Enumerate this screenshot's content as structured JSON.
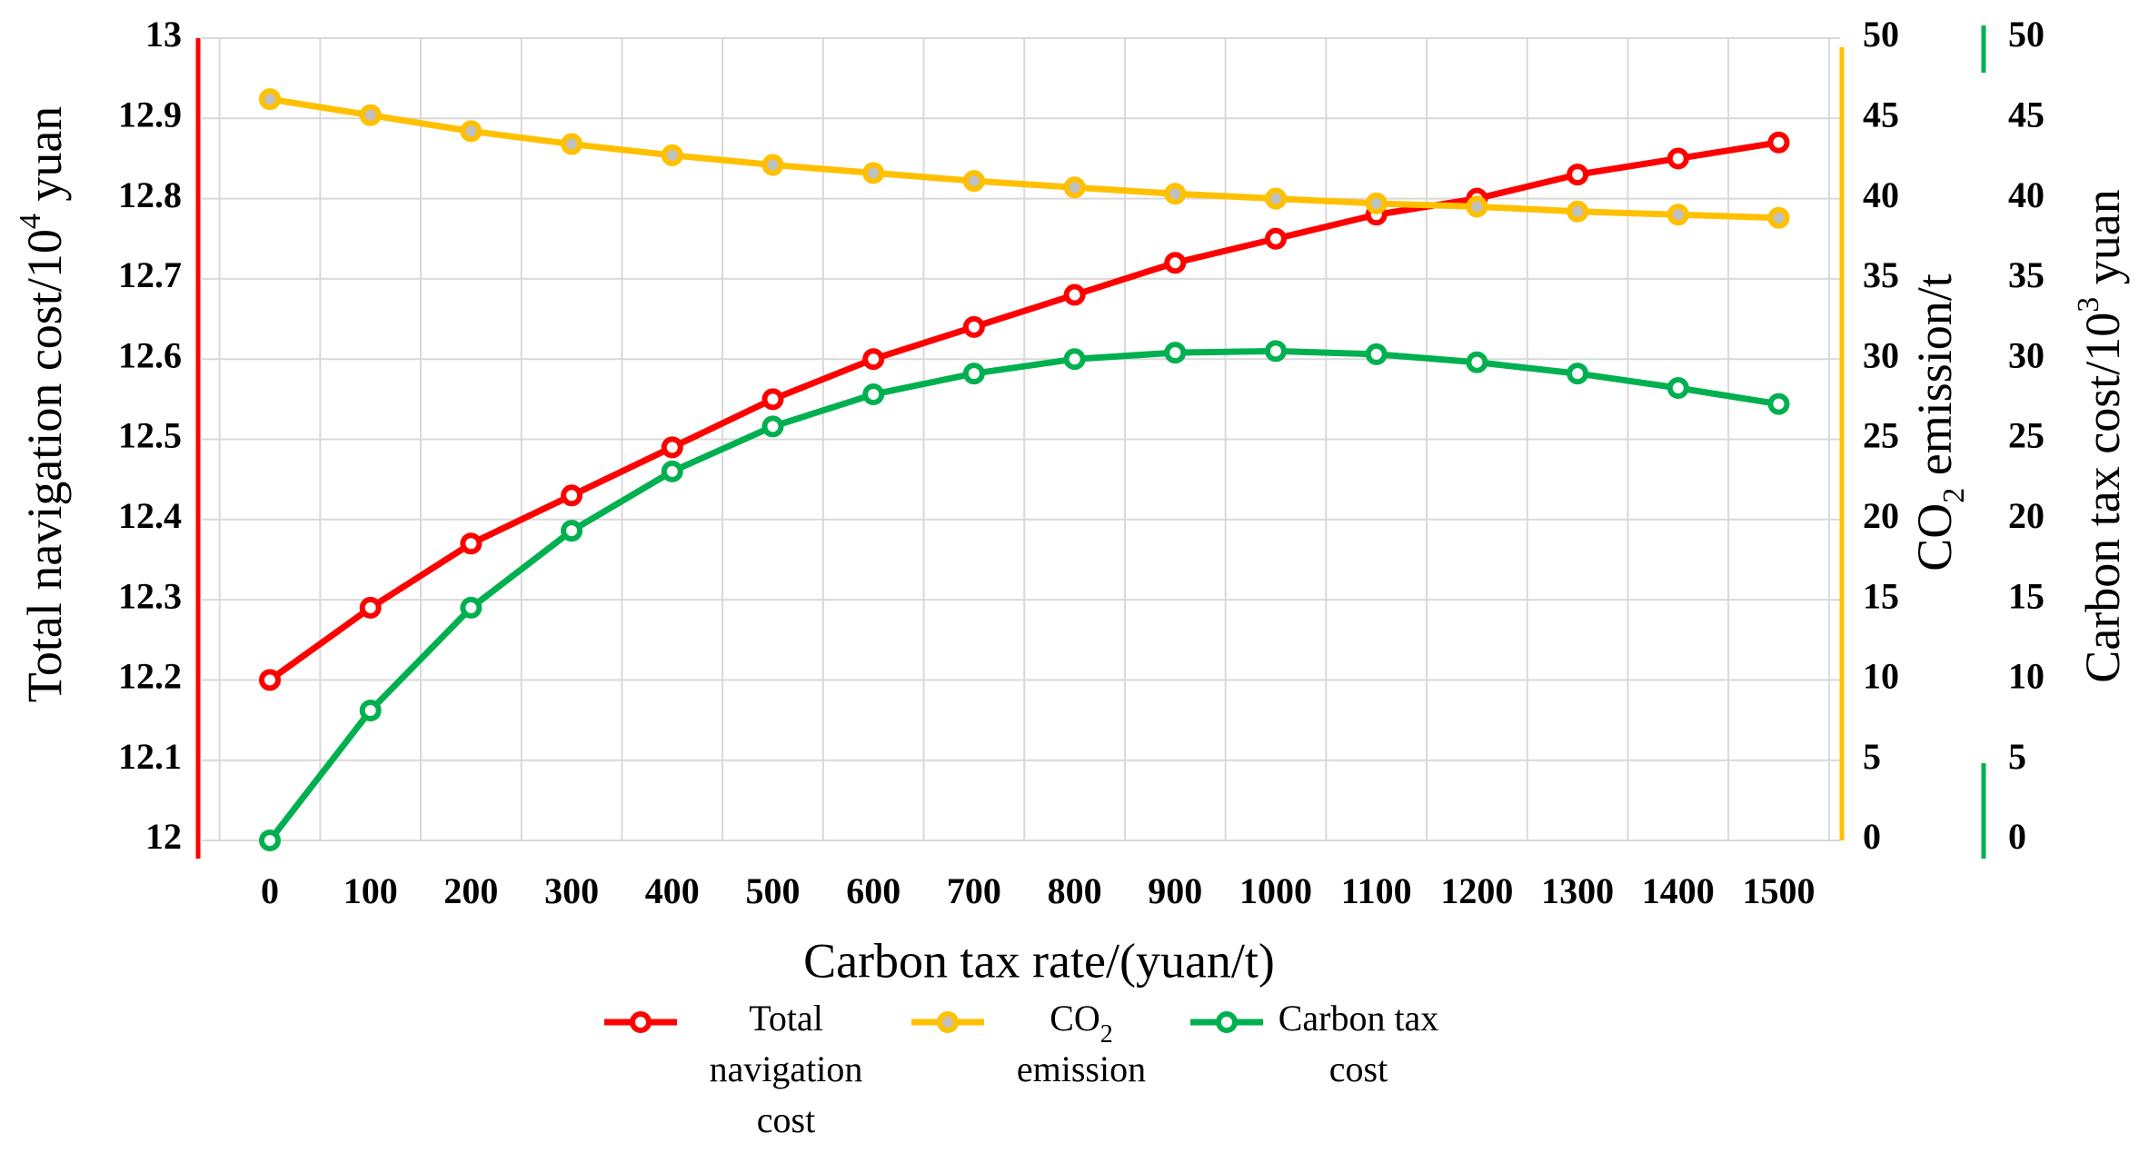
{
  "chart_data": {
    "type": "line",
    "xlabel": "Carbon tax rate/(yuan/t)",
    "x": [
      0,
      100,
      200,
      300,
      400,
      500,
      600,
      700,
      800,
      900,
      1000,
      1100,
      1200,
      1300,
      1400,
      1500
    ],
    "x_tick_labels": [
      "0",
      "100",
      "200",
      "300",
      "400",
      "500",
      "600",
      "700",
      "800",
      "900",
      "1000",
      "1100",
      "1200",
      "1300",
      "1400",
      "1500"
    ],
    "axes": {
      "left": {
        "label_prefix": "Total navigation cost/10",
        "label_sup": "4",
        "label_suffix": " yuan",
        "ylim": [
          12,
          13
        ],
        "ticks": [
          12,
          12.1,
          12.2,
          12.3,
          12.4,
          12.5,
          12.6,
          12.7,
          12.8,
          12.9,
          13
        ],
        "tick_labels": [
          "12",
          "12.1",
          "12.2",
          "12.3",
          "12.4",
          "12.5",
          "12.6",
          "12.7",
          "12.8",
          "12.9",
          "13"
        ],
        "color": "#ff0000"
      },
      "right1": {
        "label_prefix": "CO",
        "label_sub": "2",
        "label_suffix": " emission/t",
        "ylim": [
          0,
          50
        ],
        "ticks": [
          0,
          5,
          10,
          15,
          20,
          25,
          30,
          35,
          40,
          45,
          50
        ],
        "tick_labels": [
          "0",
          "5",
          "10",
          "15",
          "20",
          "25",
          "30",
          "35",
          "40",
          "45",
          "50"
        ],
        "color": "#ffc000"
      },
      "right2": {
        "label_prefix": "Carbon tax cost/10",
        "label_sup": "3",
        "label_suffix": " yuan",
        "ylim": [
          0,
          50
        ],
        "ticks": [
          0,
          5,
          10,
          15,
          20,
          25,
          30,
          35,
          40,
          45,
          50
        ],
        "tick_labels": [
          "0",
          "5",
          "10",
          "15",
          "20",
          "25",
          "30",
          "35",
          "40",
          "45",
          "50"
        ],
        "color": "#00b050"
      }
    },
    "series": [
      {
        "name": "Total navigation cost",
        "axis": "left",
        "color": "#ff0000",
        "values": [
          12.2,
          12.29,
          12.37,
          12.43,
          12.49,
          12.55,
          12.6,
          12.64,
          12.68,
          12.72,
          12.75,
          12.78,
          12.8,
          12.83,
          12.85,
          12.87
        ]
      },
      {
        "name": "CO2 emission",
        "axis": "right1",
        "color": "#ffc000",
        "values": [
          46.2,
          45.2,
          44.2,
          43.4,
          42.7,
          42.1,
          41.6,
          41.1,
          40.7,
          40.3,
          40.0,
          39.7,
          39.5,
          39.2,
          39.0,
          38.8
        ]
      },
      {
        "name": "Carbon tax cost",
        "axis": "right2",
        "color": "#00b050",
        "values": [
          0,
          8.1,
          14.5,
          19.3,
          23.0,
          25.8,
          27.8,
          29.1,
          30.0,
          30.4,
          30.5,
          30.3,
          29.8,
          29.1,
          28.2,
          27.2
        ]
      }
    ],
    "legend": {
      "position": "bottom",
      "items": [
        {
          "series": "Total navigation cost",
          "lines": [
            "Total",
            "navigation",
            "cost"
          ]
        },
        {
          "series": "CO2 emission",
          "line1_prefix": "CO",
          "line1_sub": "2",
          "line2": "emission"
        },
        {
          "series": "Carbon tax cost",
          "lines": [
            "Carbon tax",
            "cost"
          ]
        }
      ]
    },
    "grid": true
  }
}
